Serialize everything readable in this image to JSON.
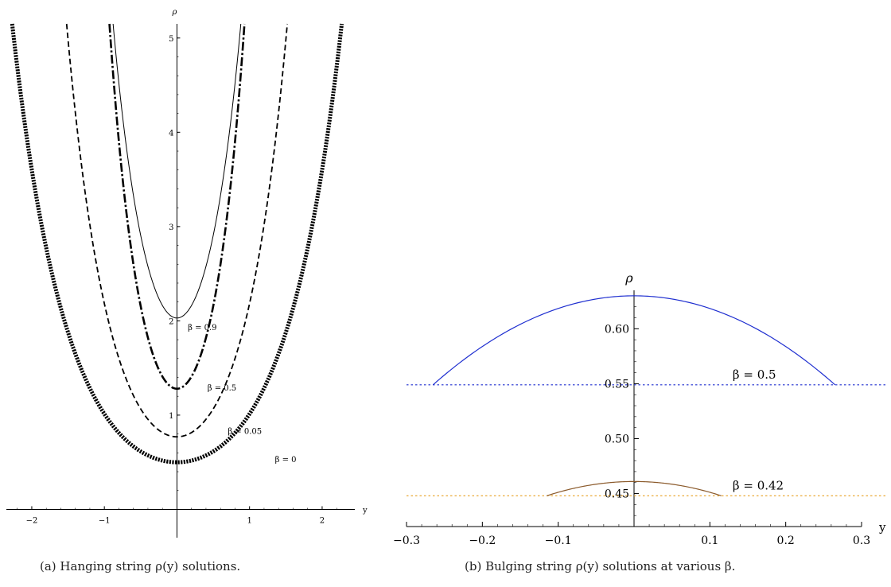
{
  "captions": {
    "a": "(a) Hanging string ρ(y) solutions.",
    "b": "(b) Bulging string ρ(y) solutions at various β."
  },
  "chart_data": [
    {
      "type": "line",
      "xlabel": "y",
      "ylabel": "ρ",
      "xlim": [
        -2.35,
        2.45
      ],
      "ylim": [
        -0.3,
        5.15
      ],
      "x_ticks": [
        -2,
        -1,
        1,
        2
      ],
      "x_tick_labels": [
        "−2",
        "−1",
        "1",
        "2"
      ],
      "y_ticks": [
        1,
        2,
        3,
        4,
        5
      ],
      "y_tick_labels": [
        "1",
        "2",
        "3",
        "4",
        "5"
      ],
      "grid": false,
      "series": [
        {
          "name": "β = 0.9",
          "label": "β = 0.9",
          "style": "solid",
          "minimum": 2.03,
          "half_width": 0.88,
          "x": [
            -0.88,
            -0.8,
            -0.6,
            -0.4,
            -0.2,
            0,
            0.2,
            0.4,
            0.6,
            0.8,
            0.88
          ],
          "y": [
            5.1,
            4.0,
            2.9,
            2.4,
            2.12,
            2.03,
            2.12,
            2.4,
            2.9,
            4.0,
            5.1
          ]
        },
        {
          "name": "β = 0.5",
          "label": "β = 0.5",
          "style": "dashdot",
          "minimum": 1.28,
          "half_width": 0.93,
          "x": [
            -0.93,
            -0.8,
            -0.6,
            -0.4,
            -0.2,
            0,
            0.2,
            0.4,
            0.6,
            0.8,
            0.93
          ],
          "y": [
            5.1,
            2.8,
            1.9,
            1.55,
            1.35,
            1.28,
            1.35,
            1.55,
            1.9,
            2.8,
            5.1
          ]
        },
        {
          "name": "β = 0.05",
          "label": "β = 0.05",
          "style": "dashed",
          "minimum": 0.77,
          "half_width": 1.52,
          "x": [
            -1.52,
            -1.3,
            -1.0,
            -0.6,
            -0.3,
            0,
            0.3,
            0.6,
            1.0,
            1.3,
            1.52
          ],
          "y": [
            5.1,
            2.5,
            1.45,
            1.0,
            0.83,
            0.77,
            0.83,
            1.0,
            1.45,
            2.5,
            5.1
          ]
        },
        {
          "name": "β = 0",
          "label": "β = 0",
          "style": "thick-dotted",
          "minimum": 0.5,
          "half_width": 2.27,
          "x": [
            -2.27,
            -2.0,
            -1.5,
            -1.0,
            -0.5,
            0,
            0.5,
            1.0,
            1.5,
            2.0,
            2.27
          ],
          "y": [
            5.1,
            2.0,
            1.0,
            0.7,
            0.55,
            0.5,
            0.55,
            0.7,
            1.0,
            2.0,
            5.1
          ]
        }
      ]
    },
    {
      "type": "line",
      "xlabel": "y",
      "ylabel": "ρ",
      "xlim": [
        -0.3,
        0.3
      ],
      "ylim": [
        0.42,
        0.635
      ],
      "x_ticks": [
        -0.3,
        -0.2,
        -0.1,
        0.1,
        0.2,
        0.3
      ],
      "x_tick_labels": [
        "−0.3",
        "−0.2",
        "−0.1",
        "0.1",
        "0.2",
        "0.3"
      ],
      "y_ticks": [
        0.45,
        0.5,
        0.55,
        0.6
      ],
      "y_tick_labels": [
        "0.45",
        "0.50",
        "0.55",
        "0.60"
      ],
      "grid": false,
      "series": [
        {
          "name": "β = 0.5",
          "label": "β = 0.5",
          "color": "#1f2fd0",
          "peak": 0.63,
          "base": 0.549,
          "half_width": 0.265,
          "asymptote": 0.549
        },
        {
          "name": "β = 0.42",
          "label": "β = 0.42",
          "color": "#8b5a2b",
          "peak": 0.461,
          "base": 0.448,
          "half_width": 0.115,
          "asymptote": 0.448,
          "asymptote_color": "#e8a020"
        }
      ]
    }
  ]
}
